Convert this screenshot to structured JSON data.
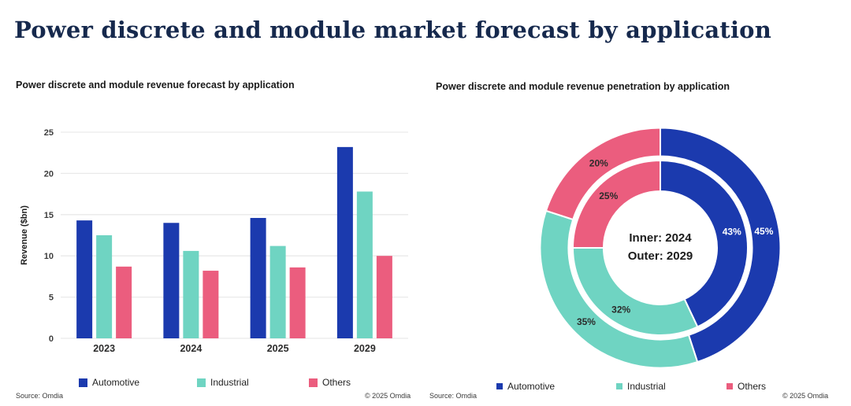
{
  "page": {
    "title": "Power discrete and module market forecast by application"
  },
  "footer": {
    "source": "Source: Omdia",
    "copyright": "© 2025 Omdia"
  },
  "colors": {
    "title_navy": "#16294d",
    "automotive_blue": "#1b3aae",
    "industrial_teal": "#6fd4c2",
    "others_pink": "#eb5d7e",
    "gridline": "#e9e9e9",
    "axis_text": "#3d3d3d",
    "label_dark": "#2b2b2b",
    "label_light": "#ffffff"
  },
  "chart_data": [
    {
      "type": "bar",
      "title": "Power discrete and module revenue forecast by application",
      "categories": [
        "2023",
        "2024",
        "2025",
        "2029"
      ],
      "series": [
        {
          "name": "Automotive",
          "color": "#1b3aae",
          "values": [
            14.3,
            14.0,
            14.6,
            23.2
          ]
        },
        {
          "name": "Industrial",
          "color": "#6fd4c2",
          "values": [
            12.5,
            10.6,
            11.2,
            17.8
          ]
        },
        {
          "name": "Others",
          "color": "#eb5d7e",
          "values": [
            8.7,
            8.2,
            8.6,
            10.0
          ]
        }
      ],
      "xlabel": "",
      "ylabel": "Revenue ($bn)",
      "ylim": [
        0,
        25
      ],
      "yticks": [
        0,
        5,
        10,
        15,
        20,
        25
      ],
      "grid": "horizontal",
      "legend_position": "bottom"
    },
    {
      "type": "pie",
      "subtype": "double-donut",
      "title": "Power discrete and module revenue penetration by application",
      "categories": [
        "Automotive",
        "Industrial",
        "Others"
      ],
      "colors": [
        "#1b3aae",
        "#6fd4c2",
        "#eb5d7e"
      ],
      "rings": [
        {
          "name": "inner-2024",
          "year": "2024",
          "values": [
            43,
            32,
            25
          ],
          "labels": [
            "43%",
            "32%",
            "25%"
          ],
          "label_colors": [
            "#ffffff",
            "#2b2b2b",
            "#2b2b2b"
          ]
        },
        {
          "name": "outer-2029",
          "year": "2029",
          "values": [
            45,
            35,
            20
          ],
          "labels": [
            "45%",
            "35%",
            "20%"
          ],
          "label_colors": [
            "#ffffff",
            "#2b2b2b",
            "#2b2b2b"
          ]
        }
      ],
      "center_text": [
        "Inner: 2024",
        "Outer: 2029"
      ],
      "start_angle_deg": 0,
      "direction": "clockwise",
      "legend_position": "bottom"
    }
  ]
}
